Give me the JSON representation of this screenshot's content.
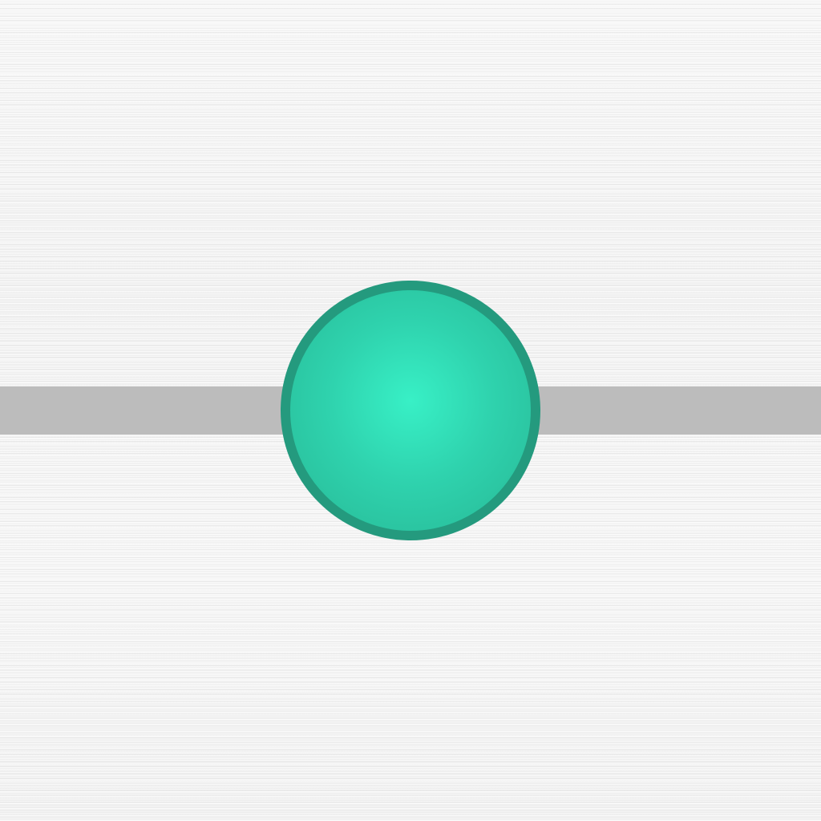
{
  "slider": {
    "value": 0.5,
    "min": 0,
    "max": 1,
    "track_color": "#bcbcbc",
    "thumb_color": "#2fd3ae",
    "thumb_border_color": "#249a7e"
  },
  "background": {
    "texture": "brushed-metal",
    "color": "#f2f2f2"
  }
}
